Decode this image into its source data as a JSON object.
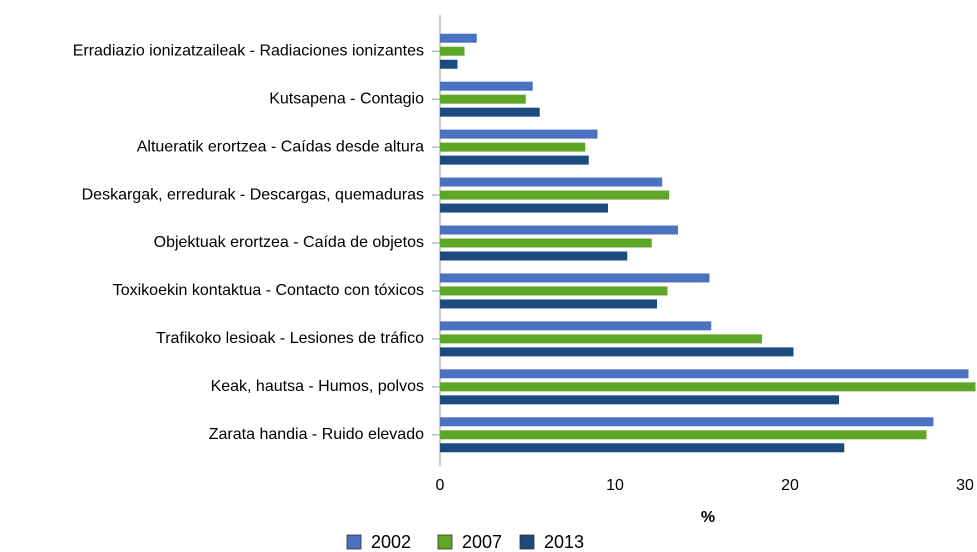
{
  "chart_data": {
    "type": "barh",
    "xlabel": "%",
    "categories": [
      "Erradiazio ionizatzaileak - Radiaciones ionizantes",
      "Kutsapena - Contagio",
      "Altueratik erortzea - Caídas desde altura",
      "Deskargak, erredurak - Descargas, quemaduras",
      "Objektuak erortzea - Caída de objetos",
      "Toxikoekin kontaktua - Contacto con tóxicos",
      "Trafikoko lesioak - Lesiones de tráfico",
      "Keak, hautsa - Humos, polvos",
      "Zarata handia - Ruido elevado"
    ],
    "series": [
      {
        "name": "2002",
        "color": "#4a72c0",
        "values": [
          2.1,
          5.3,
          9.0,
          12.7,
          13.6,
          15.4,
          15.5,
          30.2,
          28.2
        ]
      },
      {
        "name": "2007",
        "color": "#5ea726",
        "values": [
          1.4,
          4.9,
          8.3,
          13.1,
          12.1,
          13.0,
          18.4,
          30.6,
          27.8
        ]
      },
      {
        "name": "2013",
        "color": "#1c4b80",
        "values": [
          1.0,
          5.7,
          8.5,
          9.6,
          10.7,
          12.4,
          20.2,
          22.8,
          23.1
        ]
      }
    ],
    "xlim": [
      0,
      30
    ],
    "xticks": [
      0,
      10,
      20,
      30
    ]
  }
}
